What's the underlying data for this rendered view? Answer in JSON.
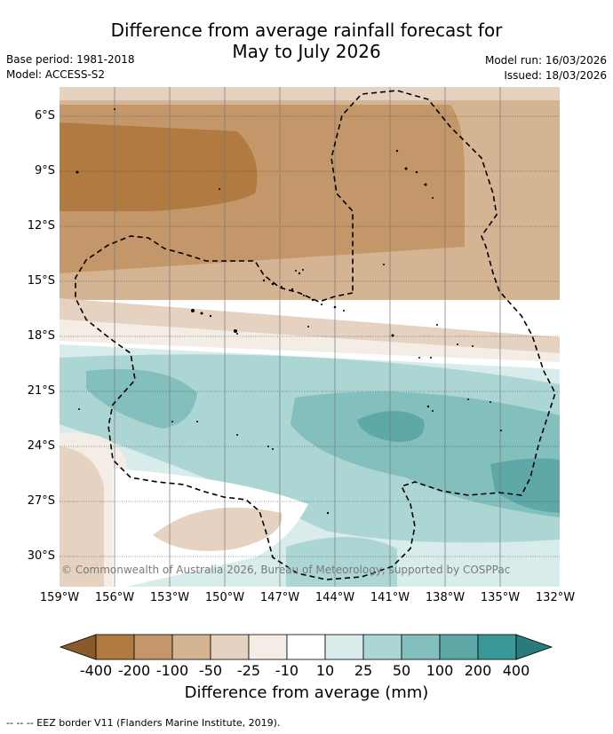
{
  "title_line1": "Difference from average rainfall forecast for",
  "title_line2": "May to July 2026",
  "base_period": "Base period: 1981-2018",
  "model": "Model: ACCESS-S2",
  "model_run": "Model run: 16/03/2026",
  "issued": "Issued: 18/03/2026",
  "lat_labels": [
    "6°S",
    "9°S",
    "12°S",
    "15°S",
    "18°S",
    "21°S",
    "24°S",
    "27°S",
    "30°S"
  ],
  "lon_labels": [
    "159°W",
    "156°W",
    "153°W",
    "150°W",
    "147°W",
    "144°W",
    "141°W",
    "138°W",
    "135°W",
    "132°W"
  ],
  "copyright": "© Commonwealth of Australia 2026, Bureau of Meteorology, supported by COSPPac",
  "colorbar": {
    "ticks": [
      "-400",
      "-200",
      "-100",
      "-50",
      "-25",
      "-10",
      "10",
      "25",
      "50",
      "100",
      "200",
      "400"
    ],
    "colors": [
      "#8a5a2b",
      "#b07a40",
      "#c4976a",
      "#d5b493",
      "#e5d2c0",
      "#f3ede6",
      "#ffffff",
      "#d8eceb",
      "#acd6d4",
      "#82bfbd",
      "#5ea9a8",
      "#379897",
      "#2a7b7a"
    ],
    "label": "Difference from average (mm)"
  },
  "footer": "--  --  -- EEZ border V11 (Flanders Marine Institute, 2019)."
}
